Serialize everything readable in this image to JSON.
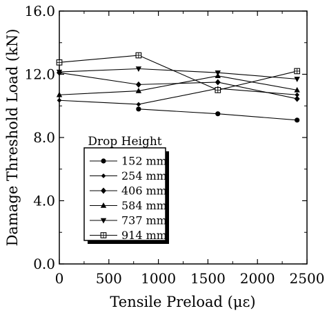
{
  "chart_data": {
    "type": "line",
    "title": "",
    "xlabel": "Tensile Preload (με)",
    "ylabel": "Damage Threshold Load (kN)",
    "xlim": [
      0,
      2500
    ],
    "ylim": [
      0,
      16
    ],
    "xticks": [
      0,
      500,
      1000,
      1500,
      2000,
      2500
    ],
    "yticks": [
      0.0,
      4.0,
      8.0,
      12.0,
      16.0
    ],
    "xtick_labels": [
      "0",
      "500",
      "1000",
      "1500",
      "2000",
      "2500"
    ],
    "ytick_labels": [
      "0.0",
      "4.0",
      "8.0",
      "12.0",
      "16.0"
    ],
    "grid": false,
    "legend": {
      "title": "Drop Height",
      "position": "lower-left"
    },
    "series": [
      {
        "name": "152 mm",
        "marker": "circle",
        "x": [
          800,
          1600,
          2400
        ],
        "y": [
          9.8,
          9.5,
          9.1
        ]
      },
      {
        "name": "254 mm",
        "marker": "small-diamond",
        "x": [
          0,
          800,
          1600,
          2400
        ],
        "y": [
          10.35,
          10.1,
          11.1,
          10.7
        ]
      },
      {
        "name": "406 mm",
        "marker": "diamond",
        "x": [
          0,
          800,
          1600,
          2400
        ],
        "y": [
          12.1,
          11.35,
          11.5,
          10.45
        ]
      },
      {
        "name": "584 mm",
        "marker": "triangle-up",
        "x": [
          0,
          800,
          1600,
          2400
        ],
        "y": [
          10.7,
          10.95,
          11.9,
          11.0
        ]
      },
      {
        "name": "737 mm",
        "marker": "triangle-down",
        "x": [
          0,
          800,
          1600,
          2400
        ],
        "y": [
          12.15,
          12.35,
          12.1,
          11.7
        ]
      },
      {
        "name": "914 mm",
        "marker": "square-cross",
        "x": [
          0,
          800,
          1600,
          2400
        ],
        "y": [
          12.75,
          13.2,
          11.0,
          12.2
        ]
      }
    ]
  }
}
